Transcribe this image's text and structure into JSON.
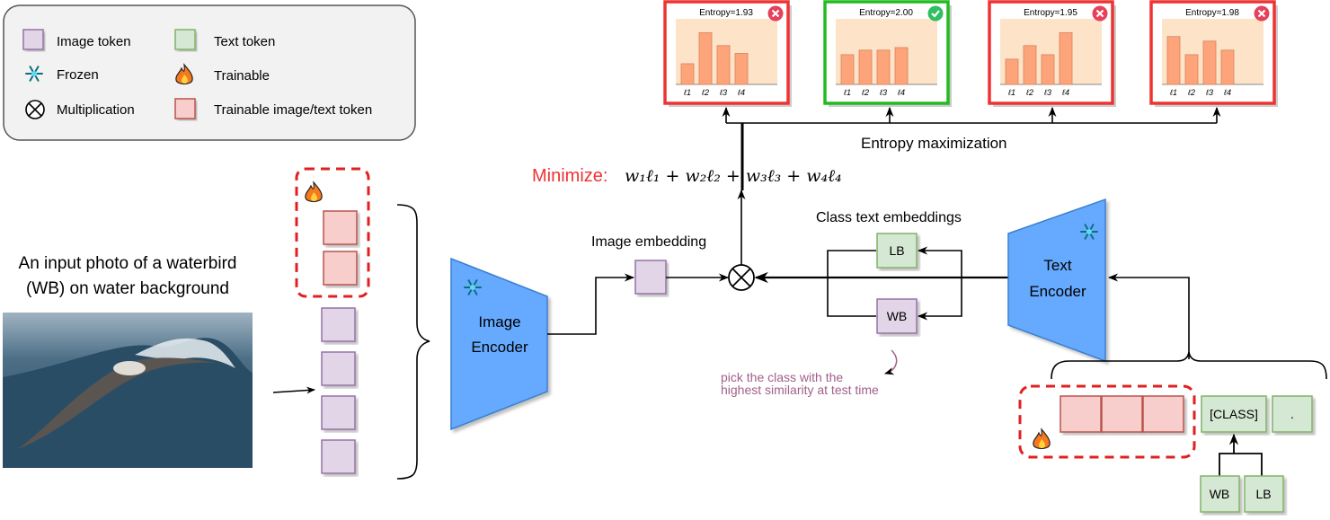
{
  "legend": {
    "items": [
      {
        "label": "Image token",
        "icon": "image-token-square",
        "color": "#e1d5e7"
      },
      {
        "label": "Text token",
        "icon": "text-token-square",
        "color": "#d5e8d4"
      },
      {
        "label": "Frozen",
        "icon": "snowflake-icon"
      },
      {
        "label": "Trainable",
        "icon": "fire-icon"
      },
      {
        "label": "Multiplication",
        "icon": "multiplication-icon"
      },
      {
        "label": "Trainable image/text token",
        "icon": "trainable-token-square",
        "color": "#f8cecc"
      }
    ]
  },
  "input_caption_line1": "An input photo of a waterbird",
  "input_caption_line2": "(WB) on water background",
  "image_encoder": {
    "line1": "Image",
    "line2": "Encoder"
  },
  "text_encoder": {
    "line1": "Text",
    "line2": "Encoder"
  },
  "image_embedding_label": "Image embedding",
  "class_text_embeddings_label": "Class text embeddings",
  "class_tokens": [
    "LB",
    "WB"
  ],
  "prompt_tokens": {
    "class": "[CLASS]",
    "period": "."
  },
  "class_inputs": [
    "WB",
    "LB"
  ],
  "annotation_line1": "pick the class with the",
  "annotation_line2": "highest similarity at test time",
  "minimize": {
    "label": "Minimize:",
    "formula": "w₁ℓ₁ + w₂ℓ₂ + w₃ℓ₃ + w₄ℓ₄"
  },
  "entropy_label": "Entropy maximization",
  "colors": {
    "correct": "#22bb22",
    "wrong": "#ee3333",
    "bar": "#fda47a",
    "plot_bg": "#fde3c8",
    "encoder": "#66aaff"
  },
  "chart_data": [
    {
      "type": "bar",
      "title": "Entropy=1.93",
      "categories": [
        "ℓ1",
        "ℓ2",
        "ℓ3",
        "ℓ4"
      ],
      "values": [
        0.32,
        0.8,
        0.6,
        0.48
      ],
      "status": "wrong"
    },
    {
      "type": "bar",
      "title": "Entropy=2.00",
      "categories": [
        "ℓ1",
        "ℓ2",
        "ℓ3",
        "ℓ4"
      ],
      "values": [
        0.46,
        0.53,
        0.53,
        0.57
      ],
      "status": "correct"
    },
    {
      "type": "bar",
      "title": "Entropy=1.95",
      "categories": [
        "ℓ1",
        "ℓ2",
        "ℓ3",
        "ℓ4"
      ],
      "values": [
        0.39,
        0.6,
        0.46,
        0.8
      ],
      "status": "wrong"
    },
    {
      "type": "bar",
      "title": "Entropy=1.98",
      "categories": [
        "ℓ1",
        "ℓ2",
        "ℓ3",
        "ℓ4"
      ],
      "values": [
        0.74,
        0.46,
        0.67,
        0.53
      ],
      "status": "wrong"
    }
  ]
}
